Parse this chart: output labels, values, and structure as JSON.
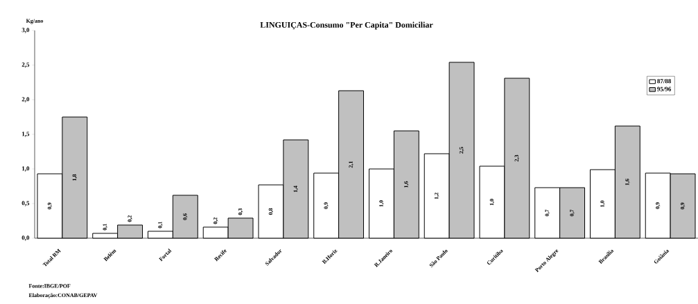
{
  "chart_data": {
    "type": "bar",
    "title": "LINGUIÇAS-Consumo \"Per Capita\" Domiciliar",
    "ylabel": "Kg/ano",
    "categories": [
      "Total RM",
      "Belém",
      "Fortal",
      "Recife",
      "Salvador",
      "B.Horiz",
      "R.Janeiro",
      "São Paulo",
      "Curitiba",
      "Porto Alegre",
      "Brasília",
      "Goiânia"
    ],
    "series": [
      {
        "name": "87/88",
        "color": "#ffffff",
        "values": [
          0.93,
          0.07,
          0.1,
          0.16,
          0.77,
          0.94,
          1.0,
          1.22,
          1.04,
          0.73,
          0.99,
          0.94
        ],
        "value_labels": [
          "0,9",
          "0,1",
          "0,1",
          "0,2",
          "0,8",
          "0,9",
          "1,0",
          "1,2",
          "1,0",
          "0,7",
          "1,0",
          "0,9"
        ]
      },
      {
        "name": "95/96",
        "color": "#c0c0c0",
        "values": [
          1.75,
          0.19,
          0.62,
          0.29,
          1.42,
          2.13,
          1.55,
          2.54,
          2.31,
          0.73,
          1.62,
          0.93
        ],
        "value_labels": [
          "1,8",
          "0,2",
          "0,6",
          "0,3",
          "1,4",
          "2,1",
          "1,6",
          "2,5",
          "2,3",
          "0,7",
          "1,6",
          "0,9"
        ]
      }
    ],
    "ylim": [
      0,
      3
    ],
    "yticks": [
      {
        "value": 0,
        "label": "0,0"
      },
      {
        "value": 0.5,
        "label": "0,5"
      },
      {
        "value": 1,
        "label": "1,0"
      },
      {
        "value": 1.5,
        "label": "1,5"
      },
      {
        "value": 2,
        "label": "2,0"
      },
      {
        "value": 2.5,
        "label": "2,5"
      },
      {
        "value": 3,
        "label": "3,0"
      }
    ],
    "legend": "top right",
    "annotations": [
      "Fonte:IBGE/POF",
      "Elaboração:CONAB/GEPAV"
    ]
  }
}
